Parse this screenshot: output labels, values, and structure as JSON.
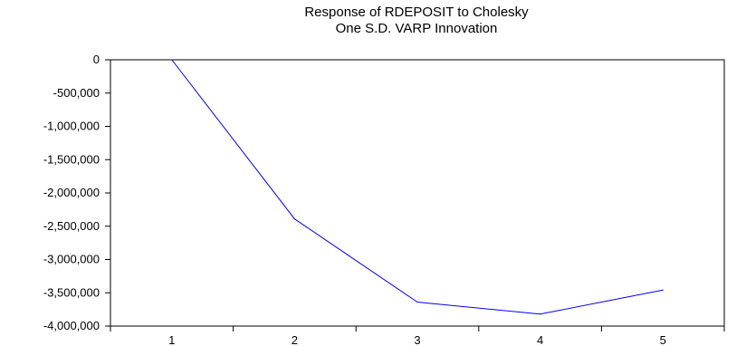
{
  "chart_data": {
    "type": "line",
    "title": [
      "Response of RDEPOSIT to Cholesky",
      "One S.D. VARP Innovation"
    ],
    "xlabel": "",
    "ylabel": "",
    "categories": [
      "1",
      "2",
      "3",
      "4",
      "5"
    ],
    "series": [
      {
        "values": [
          0,
          -2390000,
          -3640000,
          -3820000,
          -3460000
        ],
        "color": "#0000ff"
      }
    ],
    "ylim": [
      -4000000,
      0
    ],
    "yticks": [
      0,
      -500000,
      -1000000,
      -1500000,
      -2000000,
      -2500000,
      -3000000,
      -3500000,
      -4000000
    ],
    "ytick_labels": [
      "0",
      "-500,000",
      "-1,000,000",
      "-1,500,000",
      "-2,000,000",
      "-2,500,000",
      "-3,000,000",
      "-3,500,000",
      "-4,000,000"
    ],
    "grid": false,
    "legend": "none"
  }
}
